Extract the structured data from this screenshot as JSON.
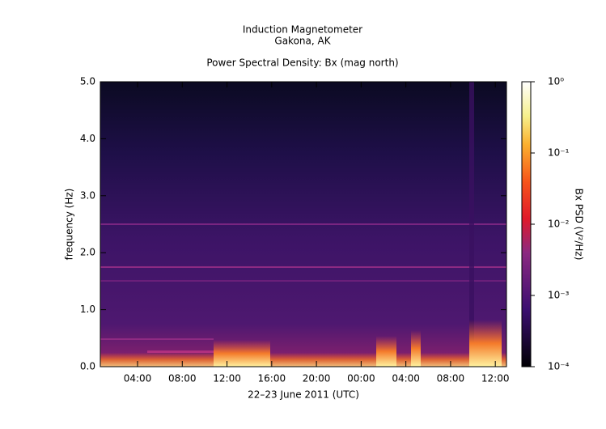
{
  "chart_data": {
    "type": "heatmap",
    "title": "Induction Magnetometer",
    "subtitle": "Gakona, AK",
    "plot_title": "Power Spectral Density: Bx (mag north)",
    "x_label": "22–23 June 2011 (UTC)",
    "y_label": "frequency (Hz)",
    "xlim": [
      0.67,
      37
    ],
    "xticks": [
      {
        "value": 4,
        "label": "04:00"
      },
      {
        "value": 8,
        "label": "08:00"
      },
      {
        "value": 12,
        "label": "12:00"
      },
      {
        "value": 16,
        "label": "16:00"
      },
      {
        "value": 20,
        "label": "20:00"
      },
      {
        "value": 24,
        "label": "00:00"
      },
      {
        "value": 28,
        "label": "04:00"
      },
      {
        "value": 32,
        "label": "08:00"
      },
      {
        "value": 36,
        "label": "12:00"
      }
    ],
    "ylim": [
      0,
      5
    ],
    "yticks": [
      {
        "value": 0,
        "label": "0.0"
      },
      {
        "value": 1,
        "label": "1.0"
      },
      {
        "value": 2,
        "label": "2.0"
      },
      {
        "value": 3,
        "label": "3.0"
      },
      {
        "value": 4,
        "label": "4.0"
      },
      {
        "value": 5,
        "label": "5.0"
      }
    ],
    "colorbar": {
      "label": "Bx PSD (V²/Hz)",
      "scale": "log",
      "lim": [
        0.0001,
        1
      ],
      "ticks": [
        {
          "value": 0.0001,
          "label": "10⁻⁴"
        },
        {
          "value": 0.001,
          "label": "10⁻³"
        },
        {
          "value": 0.01,
          "label": "10⁻²"
        },
        {
          "value": 0.1,
          "label": "10⁻¹"
        },
        {
          "value": 1,
          "label": "10⁰"
        }
      ]
    }
  }
}
